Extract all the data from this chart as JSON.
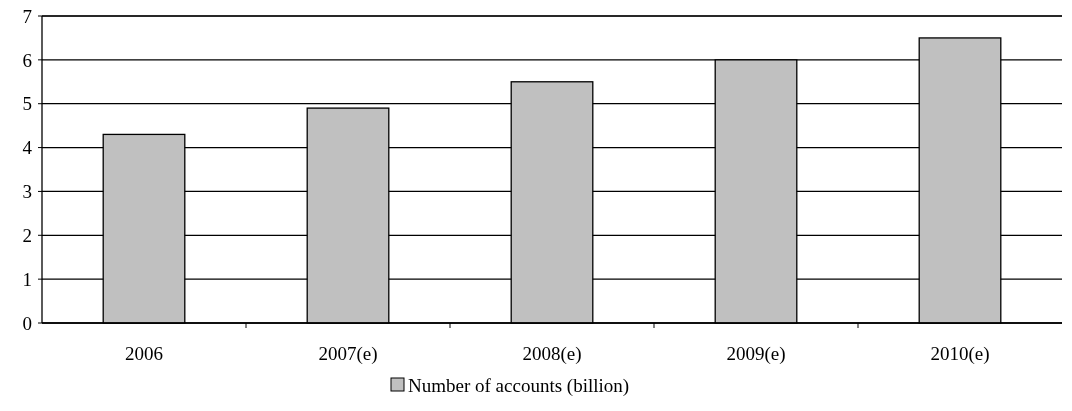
{
  "chart_data": {
    "type": "bar",
    "categories": [
      "2006",
      "2007(e)",
      "2008(e)",
      "2009(e)",
      "2010(e)"
    ],
    "series": [
      {
        "name": "Number of accounts (billion)",
        "color": "#c0c0c0",
        "values": [
          4.3,
          4.9,
          5.5,
          6.0,
          6.5
        ]
      }
    ],
    "ylim": [
      0,
      7
    ],
    "yticks": [
      0,
      1,
      2,
      3,
      4,
      5,
      6,
      7
    ],
    "grid": "y",
    "legend": "bottom"
  }
}
